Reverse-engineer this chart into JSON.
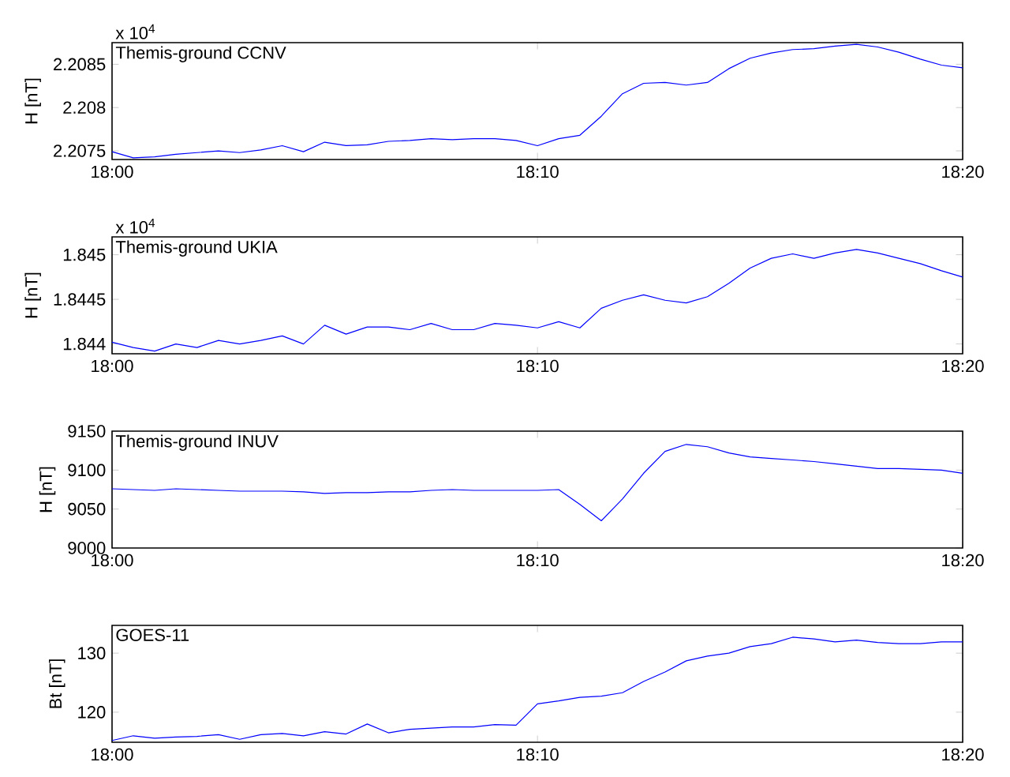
{
  "chart_data": [
    {
      "type": "line",
      "ylabel": "H [nT]",
      "annotations": [
        "Themis-ground CCNV",
        "x 10$^{4}$"
      ],
      "color": "#0000ff",
      "xlim": [
        18,
        18.3333
      ],
      "xticks": [
        {
          "value": 18,
          "label": "18:00"
        },
        {
          "value": 18.1667,
          "label": "18:10"
        },
        {
          "value": 18.3333,
          "label": "18:20"
        }
      ],
      "ylim": [
        2.2074,
        2.20875
      ],
      "yticks": [
        2.2075,
        2.208,
        2.2085
      ],
      "x": [
        18,
        18.0083,
        18.0167,
        18.025,
        18.0333,
        18.0417,
        18.05,
        18.0583,
        18.0667,
        18.075,
        18.0833,
        18.0917,
        18.1,
        18.1083,
        18.1167,
        18.125,
        18.1333,
        18.1417,
        18.15,
        18.1583,
        18.1667,
        18.175,
        18.1833,
        18.1917,
        18.2,
        18.2083,
        18.2167,
        18.225,
        18.2333,
        18.2417,
        18.25,
        18.2583,
        18.2667,
        18.275,
        18.2833,
        18.2917,
        18.3,
        18.3083,
        18.3167,
        18.325,
        18.3333
      ],
      "values": [
        2.20749,
        2.20742,
        2.20743,
        2.20746,
        2.20748,
        2.2075,
        2.20748,
        2.20751,
        2.20756,
        2.20749,
        2.2076,
        2.20756,
        2.20757,
        2.20761,
        2.20762,
        2.20764,
        2.20763,
        2.20764,
        2.20764,
        2.20762,
        2.20756,
        2.20764,
        2.20768,
        2.2079,
        2.20816,
        2.20828,
        2.20829,
        2.20826,
        2.20829,
        2.20845,
        2.20857,
        2.20863,
        2.20867,
        2.20868,
        2.20871,
        2.20873,
        2.2087,
        2.20864,
        2.20856,
        2.20849,
        2.20846
      ]
    },
    {
      "type": "line",
      "ylabel": "H [nT]",
      "annotations": [
        "Themis-ground UKIA",
        "x 10$^{4}$"
      ],
      "color": "#0000ff",
      "xlim": [
        18,
        18.3333
      ],
      "xticks": [
        {
          "value": 18,
          "label": "18:00"
        },
        {
          "value": 18.1667,
          "label": "18:10"
        },
        {
          "value": 18.3333,
          "label": "18:20"
        }
      ],
      "ylim": [
        1.84389,
        1.8452
      ],
      "yticks": [
        1.844,
        1.8445,
        1.845
      ],
      "x": [
        18,
        18.0083,
        18.0167,
        18.025,
        18.0333,
        18.0417,
        18.05,
        18.0583,
        18.0667,
        18.075,
        18.0833,
        18.0917,
        18.1,
        18.1083,
        18.1167,
        18.125,
        18.1333,
        18.1417,
        18.15,
        18.1583,
        18.1667,
        18.175,
        18.1833,
        18.1917,
        18.2,
        18.2083,
        18.2167,
        18.225,
        18.2333,
        18.2417,
        18.25,
        18.2583,
        18.2667,
        18.275,
        18.2833,
        18.2917,
        18.3,
        18.3083,
        18.3167,
        18.325,
        18.3333
      ],
      "values": [
        1.84402,
        1.84396,
        1.84392,
        1.844,
        1.84396,
        1.84404,
        1.844,
        1.84404,
        1.84409,
        1.844,
        1.84421,
        1.84411,
        1.84419,
        1.84419,
        1.84416,
        1.84423,
        1.84416,
        1.84416,
        1.84423,
        1.84421,
        1.84418,
        1.84425,
        1.84418,
        1.8444,
        1.84449,
        1.84455,
        1.84449,
        1.84446,
        1.84453,
        1.84468,
        1.84485,
        1.84496,
        1.84501,
        1.84496,
        1.84502,
        1.84506,
        1.84502,
        1.84496,
        1.8449,
        1.84482,
        1.84475
      ]
    },
    {
      "type": "line",
      "ylabel": "H [nT]",
      "annotations": [
        "Themis-ground INUV"
      ],
      "color": "#0000ff",
      "xlim": [
        18,
        18.3333
      ],
      "xticks": [
        {
          "value": 18,
          "label": "18:00"
        },
        {
          "value": 18.1667,
          "label": "18:10"
        },
        {
          "value": 18.3333,
          "label": "18:20"
        }
      ],
      "ylim": [
        9000,
        9150
      ],
      "yticks": [
        9000,
        9050,
        9100,
        9150
      ],
      "x": [
        18,
        18.0083,
        18.0167,
        18.025,
        18.0333,
        18.0417,
        18.05,
        18.0583,
        18.0667,
        18.075,
        18.0833,
        18.0917,
        18.1,
        18.1083,
        18.1167,
        18.125,
        18.1333,
        18.1417,
        18.15,
        18.1583,
        18.1667,
        18.175,
        18.1833,
        18.1917,
        18.2,
        18.2083,
        18.2167,
        18.225,
        18.2333,
        18.2417,
        18.25,
        18.2583,
        18.2667,
        18.275,
        18.2833,
        18.2917,
        18.3,
        18.3083,
        18.3167,
        18.325,
        18.3333
      ],
      "values": [
        9076,
        9075,
        9074,
        9076,
        9075,
        9074,
        9073,
        9073,
        9073,
        9072,
        9070,
        9071,
        9071,
        9072,
        9072,
        9074,
        9075,
        9074,
        9074,
        9074,
        9074,
        9075,
        9056,
        9035,
        9063,
        9096,
        9124,
        9133,
        9130,
        9122,
        9117,
        9115,
        9113,
        9111,
        9108,
        9105,
        9102,
        9102,
        9101,
        9100,
        9096
      ]
    },
    {
      "type": "line",
      "ylabel": "Bt [nT]",
      "annotations": [
        "GOES-11"
      ],
      "color": "#0000ff",
      "xlim": [
        18,
        18.3333
      ],
      "xticks": [
        {
          "value": 18,
          "label": "18:00"
        },
        {
          "value": 18.1667,
          "label": "18:10"
        },
        {
          "value": 18.3333,
          "label": "18:20"
        }
      ],
      "ylim": [
        114.9,
        134.7
      ],
      "yticks": [
        120,
        130
      ],
      "x": [
        18,
        18.0083,
        18.0167,
        18.025,
        18.0333,
        18.0417,
        18.05,
        18.0583,
        18.0667,
        18.075,
        18.0833,
        18.0917,
        18.1,
        18.1083,
        18.1167,
        18.125,
        18.1333,
        18.1417,
        18.15,
        18.1583,
        18.1667,
        18.175,
        18.1833,
        18.1917,
        18.2,
        18.2083,
        18.2167,
        18.225,
        18.2333,
        18.2417,
        18.25,
        18.2583,
        18.2667,
        18.275,
        18.2833,
        18.2917,
        18.3,
        18.3083,
        18.3167,
        18.325,
        18.3333
      ],
      "values": [
        115.2,
        116.0,
        115.6,
        115.8,
        115.9,
        116.2,
        115.4,
        116.2,
        116.4,
        116.0,
        116.7,
        116.3,
        118.0,
        116.5,
        117.1,
        117.3,
        117.5,
        117.5,
        117.9,
        117.8,
        121.4,
        121.9,
        122.5,
        122.7,
        123.3,
        125.2,
        126.8,
        128.7,
        129.5,
        130.0,
        131.1,
        131.6,
        132.7,
        132.4,
        131.9,
        132.2,
        131.8,
        131.6,
        131.6,
        131.9,
        131.9
      ]
    }
  ]
}
